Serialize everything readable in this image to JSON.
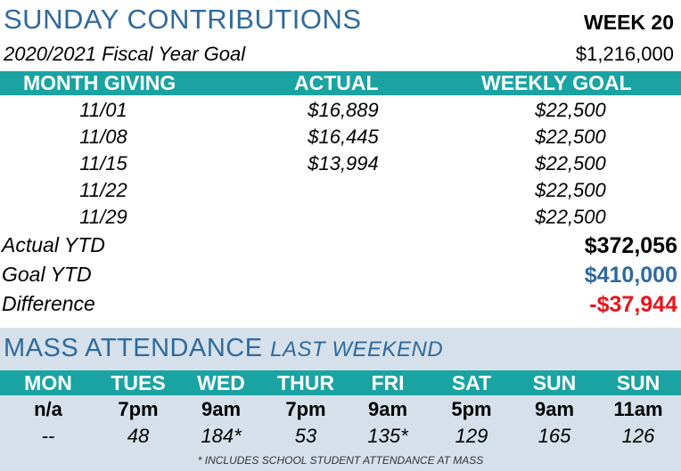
{
  "header": {
    "title": "SUNDAY CONTRIBUTIONS",
    "week": "WEEK 20",
    "fiscal_label": "2020/2021 Fiscal Year Goal",
    "fiscal_goal": "$1,216,000"
  },
  "table": {
    "columns": [
      "MONTH GIVING",
      "ACTUAL",
      "WEEKLY GOAL"
    ],
    "rows": [
      {
        "date": "11/01",
        "actual": "$16,889",
        "goal": "$22,500"
      },
      {
        "date": "11/08",
        "actual": "$16,445",
        "goal": "$22,500"
      },
      {
        "date": "11/15",
        "actual": "$13,994",
        "goal": "$22,500"
      },
      {
        "date": "11/22",
        "actual": "",
        "goal": "$22,500"
      },
      {
        "date": "11/29",
        "actual": "",
        "goal": "$22,500"
      }
    ]
  },
  "summary": {
    "actual_label": "Actual YTD",
    "actual_value": "$372,056",
    "goal_label": "Goal YTD",
    "goal_value": "$410,000",
    "diff_label": "Difference",
    "diff_value": "-$37,944"
  },
  "mass": {
    "title": "MASS ATTENDANCE",
    "subtitle": "LAST WEEKEND",
    "days": [
      "MON",
      "TUES",
      "WED",
      "THUR",
      "FRI",
      "SAT",
      "SUN",
      "SUN"
    ],
    "times": [
      "n/a",
      "7pm",
      "9am",
      "7pm",
      "9am",
      "5pm",
      "9am",
      "11am"
    ],
    "attendance": [
      "--",
      "48",
      "184*",
      "53",
      "135*",
      "129",
      "165",
      "126"
    ],
    "footnote": "* INCLUDES SCHOOL STUDENT ATTENDANCE AT MASS"
  },
  "colors": {
    "title_blue": "#2f6a9c",
    "teal": "#1aa3a3",
    "goal_blue": "#2f6a9c",
    "diff_red": "#e8141c",
    "mass_bg": "#d5e0ea"
  }
}
